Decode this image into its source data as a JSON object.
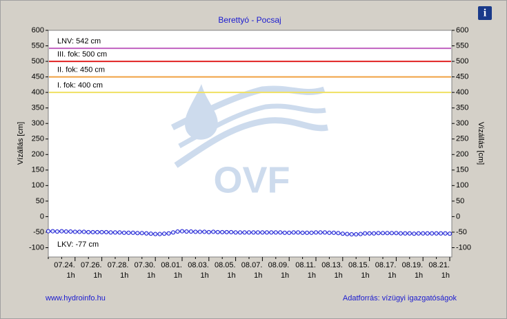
{
  "chart_data": {
    "type": "line",
    "title": "Berettyó - Pocsaj",
    "ylabel": "Vízállás [cm]",
    "y2label": "Vízállás [cm]",
    "footer_left": "www.hydroinfo.hu",
    "footer_right": "Adatforrás: vízügyi igazgatóságok",
    "watermark": "OVF",
    "info_icon": "i",
    "categories": [
      null,
      null,
      null,
      null,
      null,
      null,
      "07.24.",
      null,
      null,
      null,
      null,
      null,
      "07.26.",
      null,
      null,
      null,
      null,
      null,
      "07.28.",
      null,
      null,
      null,
      null,
      null,
      "07.30.",
      null,
      null,
      null,
      null,
      null,
      "08.01.",
      null,
      null,
      null,
      null,
      null,
      "08.03.",
      null,
      null,
      null,
      null,
      null,
      "08.05.",
      null,
      null,
      null,
      null,
      null,
      "08.07.",
      null,
      null,
      null,
      null,
      null,
      "08.09.",
      null,
      null,
      null,
      null,
      null,
      "08.11.",
      null,
      null,
      null,
      null,
      null,
      "08.13.",
      null,
      null,
      null,
      null,
      null,
      "08.15.",
      null,
      null,
      null,
      null,
      null,
      "08.17.",
      null,
      null,
      null,
      null,
      null,
      "08.19.",
      null,
      null,
      null,
      null,
      null,
      "08.21."
    ],
    "hour_labels": [
      null,
      null,
      null,
      null,
      null,
      null,
      "1h",
      null,
      null,
      null,
      null,
      null,
      "1h",
      null,
      null,
      null,
      null,
      null,
      "1h",
      null,
      null,
      null,
      null,
      null,
      "1h",
      null,
      null,
      null,
      null,
      null,
      "1h",
      null,
      null,
      null,
      null,
      null,
      "1h",
      null,
      null,
      null,
      null,
      null,
      "1h",
      null,
      null,
      null,
      null,
      null,
      "1h",
      null,
      null,
      null,
      null,
      null,
      "1h",
      null,
      null,
      null,
      null,
      null,
      "1h",
      null,
      null,
      null,
      null,
      null,
      "1h",
      null,
      null,
      null,
      null,
      null,
      "1h",
      null,
      null,
      null,
      null,
      null,
      "1h",
      null,
      null,
      null,
      null,
      null,
      "1h",
      null,
      null,
      null,
      null,
      null,
      "1h"
    ],
    "values": [
      -47,
      -47,
      -48,
      -47,
      -48,
      -48,
      -49,
      -49,
      -49,
      -50,
      -50,
      -50,
      -50,
      -50,
      -51,
      -51,
      -51,
      -52,
      -52,
      -52,
      -53,
      -53,
      -54,
      -55,
      -56,
      -56,
      -55,
      -54,
      -51,
      -48,
      -47,
      -48,
      -48,
      -49,
      -49,
      -49,
      -50,
      -49,
      -50,
      -50,
      -50,
      -50,
      -51,
      -51,
      -51,
      -51,
      -51,
      -51,
      -51,
      -51,
      -51,
      -51,
      -51,
      -52,
      -52,
      -51,
      -51,
      -52,
      -52,
      -52,
      -51,
      -51,
      -51,
      -52,
      -52,
      -53,
      -55,
      -56,
      -57,
      -57,
      -56,
      -54,
      -54,
      -54,
      -53,
      -53,
      -53,
      -53,
      -53,
      -54,
      -54,
      -54,
      -55,
      -54,
      -54,
      -54,
      -54,
      -54,
      -54,
      -54,
      -55
    ],
    "color": "#1a1ad0",
    "thresholds": [
      {
        "label": "LNV: 542 cm",
        "value": 542,
        "color": "#c060c0"
      },
      {
        "label": "III. fok: 500 cm",
        "value": 500,
        "color": "#e02020"
      },
      {
        "label": "II. fok: 450 cm",
        "value": 450,
        "color": "#f0a040"
      },
      {
        "label": "I. fok: 400 cm",
        "value": 400,
        "color": "#f0e060"
      },
      {
        "label": "LKV: -77 cm",
        "value": -77
      }
    ],
    "ylim": [
      -130,
      600
    ],
    "yticks": [
      -100,
      -50,
      0,
      50,
      100,
      150,
      200,
      250,
      300,
      350,
      400,
      450,
      500,
      550,
      600
    ],
    "y2lim": [
      -130,
      600
    ],
    "y2ticks": [
      -100,
      -50,
      0,
      50,
      100,
      150,
      200,
      250,
      300,
      350,
      400,
      450,
      500,
      550,
      600
    ]
  }
}
